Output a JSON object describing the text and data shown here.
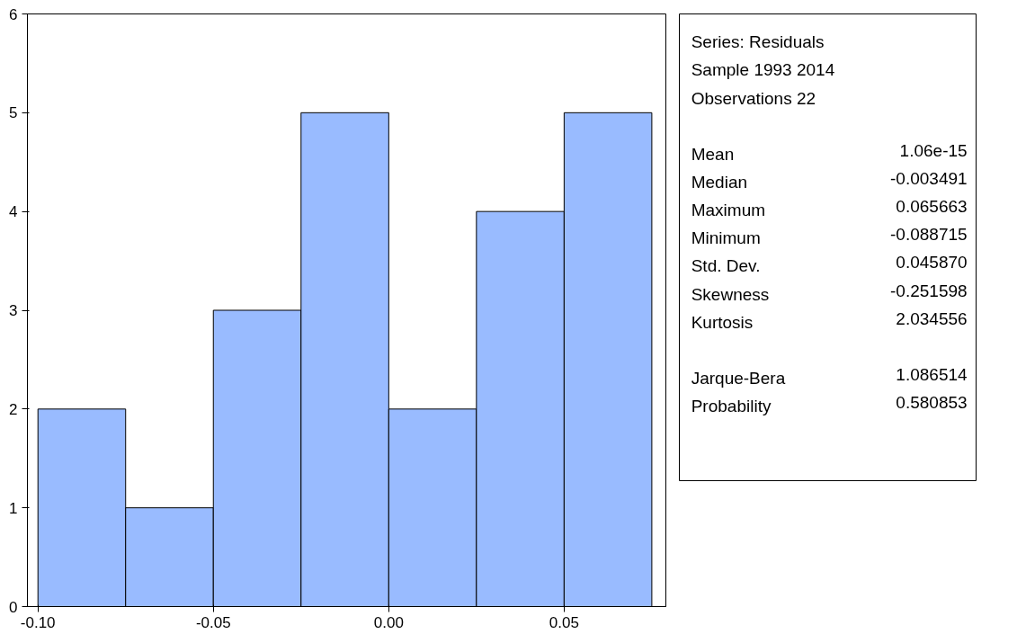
{
  "chart_data": {
    "type": "histogram",
    "bins": [
      -0.1,
      -0.075,
      -0.05,
      -0.025,
      0,
      0.025,
      0.05,
      0.075
    ],
    "values": [
      2,
      1,
      3,
      5,
      2,
      4,
      5
    ],
    "color": "#99bbff",
    "xlim": [
      -0.103,
      0.079
    ],
    "xticks": [
      {
        "value": -0.1,
        "label": "-0.10"
      },
      -0.05,
      {
        "value": 0,
        "label": "0.00"
      },
      0.05
    ],
    "ylim": [
      0,
      6
    ],
    "yticks": [
      0,
      1,
      2,
      3,
      4,
      5,
      6
    ],
    "grid": false,
    "legend": false,
    "annotations": [
      "Series: Residuals",
      "Sample 1993 2014",
      "Observations 22",
      "Mean",
      "1.06e-15",
      "Median",
      "-0.003491",
      "Maximum",
      "0.065663",
      "Minimum",
      "-0.088715",
      "Std. Dev.",
      "0.045870",
      "Skewness",
      "-0.251598",
      "Kurtosis",
      "2.034556",
      "Jarque-Bera",
      "1.086514",
      "Probability",
      "0.580853"
    ]
  }
}
